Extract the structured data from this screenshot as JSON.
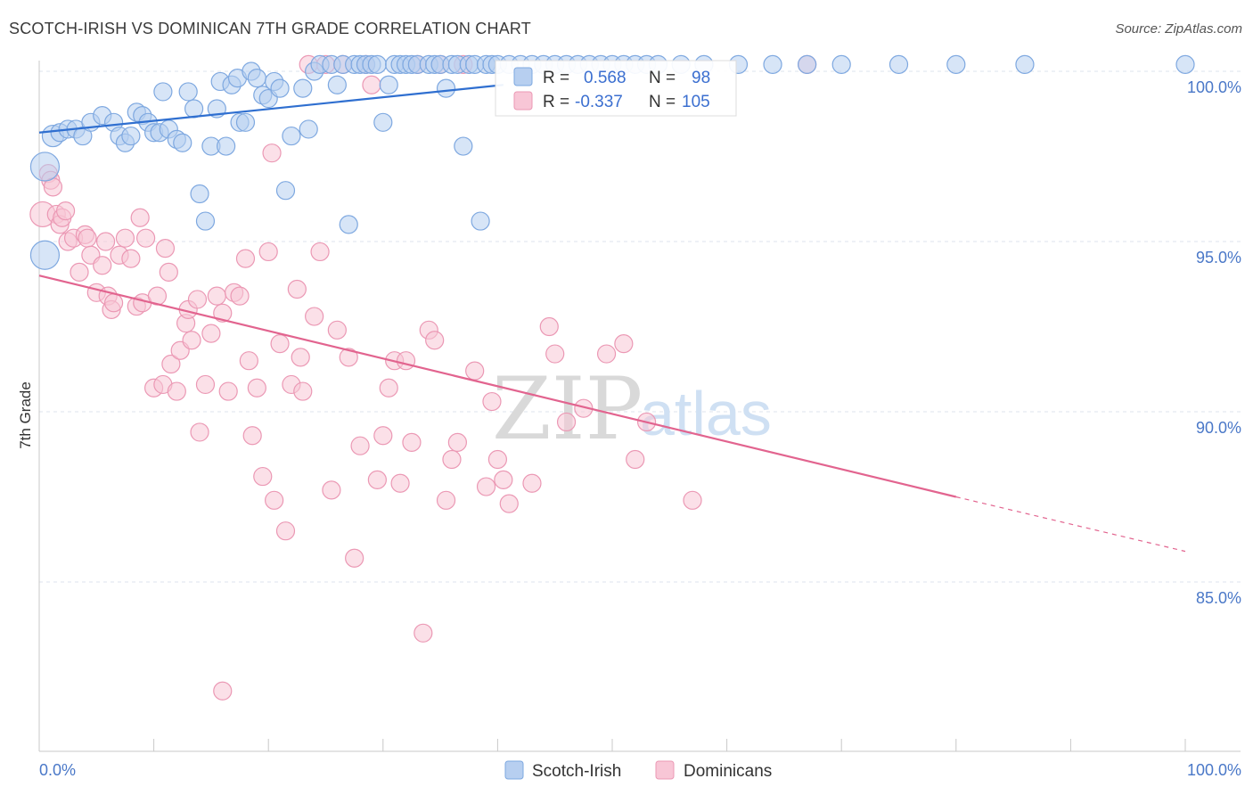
{
  "title": "SCOTCH-IRISH VS DOMINICAN 7TH GRADE CORRELATION CHART",
  "source": "Source: ZipAtlas.com",
  "watermark": {
    "zip": "ZIP",
    "atlas": "atlas"
  },
  "legend": {
    "rows": [
      {
        "r_label": "R =",
        "r_value": "0.568",
        "n_label": "N =",
        "n_value": "98"
      },
      {
        "r_label": "R =",
        "r_value": "-0.337",
        "n_label": "N =",
        "n_value": "105"
      }
    ]
  },
  "bottom_legend": [
    "Scotch-Irish",
    "Dominicans"
  ],
  "colors": {
    "blue_fill": "#b7cff0",
    "blue_stroke": "#7ea8e0",
    "blue_line": "#2f6fd0",
    "pink_fill": "#f8c6d6",
    "pink_stroke": "#eb98b4",
    "pink_line": "#e2648f",
    "grid": "#dde3ec",
    "axis_label": "#4a78c8"
  },
  "chart_data": {
    "type": "scatter",
    "title": "SCOTCH-IRISH VS DOMINICAN 7TH GRADE CORRELATION CHART",
    "xlabel": "",
    "ylabel": "7th Grade",
    "xlim": [
      0,
      100
    ],
    "ylim": [
      80.5,
      100.5
    ],
    "x_tick_labels": [
      "0.0%",
      "100.0%"
    ],
    "y_ticks": [
      100,
      95,
      90,
      85
    ],
    "y_tick_labels": [
      "100.0%",
      "95.0%",
      "90.0%",
      "85.0%"
    ],
    "grid": "horizontal dashed",
    "series": [
      {
        "name": "Scotch-Irish",
        "color": "#b7cff0",
        "trend": {
          "x": [
            0,
            40.5
          ],
          "y": [
            98.2,
            99.6
          ]
        },
        "points": [
          [
            0.5,
            97.2,
            16
          ],
          [
            0.5,
            94.6,
            16
          ],
          [
            1.2,
            98.1,
            12
          ],
          [
            1.8,
            98.2,
            10
          ],
          [
            2.5,
            98.3,
            10
          ],
          [
            3.2,
            98.3,
            10
          ],
          [
            3.8,
            98.1,
            10
          ],
          [
            4.5,
            98.5,
            10
          ],
          [
            5.5,
            98.7,
            10
          ],
          [
            6.5,
            98.5,
            10
          ],
          [
            7.0,
            98.1,
            10
          ],
          [
            7.5,
            97.9,
            10
          ],
          [
            8.0,
            98.1,
            10
          ],
          [
            8.5,
            98.8,
            10
          ],
          [
            9.0,
            98.7,
            10
          ],
          [
            9.5,
            98.5,
            10
          ],
          [
            10.0,
            98.2,
            10
          ],
          [
            10.5,
            98.2,
            10
          ],
          [
            10.8,
            99.4,
            10
          ],
          [
            11.3,
            98.3,
            10
          ],
          [
            12.0,
            98.0,
            10
          ],
          [
            12.5,
            97.9,
            10
          ],
          [
            13.0,
            99.4,
            10
          ],
          [
            13.5,
            98.9,
            10
          ],
          [
            14.0,
            96.4,
            10
          ],
          [
            14.5,
            95.6,
            10
          ],
          [
            15.0,
            97.8,
            10
          ],
          [
            15.5,
            98.9,
            10
          ],
          [
            15.8,
            99.7,
            10
          ],
          [
            16.3,
            97.8,
            10
          ],
          [
            16.8,
            99.6,
            10
          ],
          [
            17.3,
            99.8,
            10
          ],
          [
            17.5,
            98.5,
            10
          ],
          [
            18.0,
            98.5,
            10
          ],
          [
            18.5,
            100.0,
            10
          ],
          [
            19.0,
            99.8,
            10
          ],
          [
            19.5,
            99.3,
            10
          ],
          [
            20.0,
            99.2,
            10
          ],
          [
            20.5,
            99.7,
            10
          ],
          [
            21.0,
            99.5,
            10
          ],
          [
            21.5,
            96.5,
            10
          ],
          [
            22.0,
            98.1,
            10
          ],
          [
            23.0,
            99.5,
            10
          ],
          [
            23.5,
            98.3,
            10
          ],
          [
            24.0,
            100.0,
            10
          ],
          [
            24.5,
            100.2,
            10
          ],
          [
            25.5,
            100.2,
            10
          ],
          [
            26.0,
            99.6,
            10
          ],
          [
            26.5,
            100.2,
            10
          ],
          [
            27.0,
            95.5,
            10
          ],
          [
            27.5,
            100.2,
            10
          ],
          [
            28.0,
            100.2,
            10
          ],
          [
            28.5,
            100.2,
            10
          ],
          [
            29.0,
            100.2,
            10
          ],
          [
            29.5,
            100.2,
            10
          ],
          [
            30.0,
            98.5,
            10
          ],
          [
            30.5,
            99.6,
            10
          ],
          [
            31.0,
            100.2,
            10
          ],
          [
            31.5,
            100.2,
            10
          ],
          [
            32.0,
            100.2,
            10
          ],
          [
            32.5,
            100.2,
            10
          ],
          [
            33.0,
            100.2,
            10
          ],
          [
            34.0,
            100.2,
            10
          ],
          [
            34.5,
            100.2,
            10
          ],
          [
            35.0,
            100.2,
            10
          ],
          [
            35.5,
            99.5,
            10
          ],
          [
            36.0,
            100.2,
            10
          ],
          [
            36.5,
            100.2,
            10
          ],
          [
            37.0,
            97.8,
            10
          ],
          [
            37.5,
            100.2,
            10
          ],
          [
            38.0,
            100.2,
            10
          ],
          [
            38.5,
            95.6,
            10
          ],
          [
            39.0,
            100.2,
            10
          ],
          [
            39.5,
            100.2,
            10
          ],
          [
            40.0,
            100.2,
            10
          ],
          [
            41.0,
            100.2,
            10
          ],
          [
            42.0,
            100.2,
            10
          ],
          [
            43.0,
            100.2,
            10
          ],
          [
            44.0,
            100.2,
            10
          ],
          [
            45.0,
            100.2,
            10
          ],
          [
            46.0,
            100.2,
            10
          ],
          [
            47.0,
            100.2,
            10
          ],
          [
            48.0,
            100.2,
            10
          ],
          [
            49.0,
            100.2,
            10
          ],
          [
            50.0,
            100.2,
            10
          ],
          [
            51.0,
            100.2,
            10
          ],
          [
            52.0,
            100.2,
            10
          ],
          [
            53.0,
            100.2,
            10
          ],
          [
            54.0,
            100.2,
            10
          ],
          [
            56.0,
            100.2,
            10
          ],
          [
            58.0,
            100.2,
            10
          ],
          [
            61.0,
            100.2,
            10
          ],
          [
            64.0,
            100.2,
            10
          ],
          [
            67.0,
            100.2,
            10
          ],
          [
            70.0,
            100.2,
            10
          ],
          [
            75.0,
            100.2,
            10
          ],
          [
            80.0,
            100.2,
            10
          ],
          [
            86.0,
            100.2,
            10
          ],
          [
            100.0,
            100.2,
            10
          ]
        ]
      },
      {
        "name": "Dominicans",
        "color": "#f8c6d6",
        "trend": {
          "x": [
            0,
            80.0
          ],
          "y": [
            94.0,
            87.5
          ]
        },
        "trend_dashed": {
          "x": [
            80.0,
            100.0
          ],
          "y": [
            87.5,
            85.9
          ]
        },
        "points": [
          [
            0.3,
            95.8,
            14
          ],
          [
            0.8,
            97.0,
            10
          ],
          [
            1.0,
            96.8,
            10
          ],
          [
            1.2,
            96.6,
            10
          ],
          [
            1.5,
            95.8,
            10
          ],
          [
            1.8,
            95.5,
            10
          ],
          [
            2.0,
            95.7,
            10
          ],
          [
            2.3,
            95.9,
            10
          ],
          [
            2.5,
            95.0,
            10
          ],
          [
            3.0,
            95.1,
            10
          ],
          [
            3.5,
            94.1,
            10
          ],
          [
            4.0,
            95.2,
            10
          ],
          [
            4.2,
            95.1,
            10
          ],
          [
            4.5,
            94.6,
            10
          ],
          [
            5.0,
            93.5,
            10
          ],
          [
            5.5,
            94.3,
            10
          ],
          [
            5.8,
            95.0,
            10
          ],
          [
            6.0,
            93.4,
            10
          ],
          [
            6.3,
            93.0,
            10
          ],
          [
            6.5,
            93.2,
            10
          ],
          [
            7.0,
            94.6,
            10
          ],
          [
            7.5,
            95.1,
            10
          ],
          [
            8.0,
            94.5,
            10
          ],
          [
            8.5,
            93.1,
            10
          ],
          [
            8.8,
            95.7,
            10
          ],
          [
            9.0,
            93.2,
            10
          ],
          [
            9.3,
            95.1,
            10
          ],
          [
            10.0,
            90.7,
            10
          ],
          [
            10.3,
            93.4,
            10
          ],
          [
            10.8,
            90.8,
            10
          ],
          [
            11.0,
            94.8,
            10
          ],
          [
            11.3,
            94.1,
            10
          ],
          [
            11.5,
            91.4,
            10
          ],
          [
            12.0,
            90.6,
            10
          ],
          [
            12.3,
            91.8,
            10
          ],
          [
            12.8,
            92.6,
            10
          ],
          [
            13.0,
            93.0,
            10
          ],
          [
            13.3,
            92.1,
            10
          ],
          [
            13.8,
            93.3,
            10
          ],
          [
            14.0,
            89.4,
            10
          ],
          [
            14.5,
            90.8,
            10
          ],
          [
            15.0,
            92.3,
            10
          ],
          [
            15.5,
            93.4,
            10
          ],
          [
            16.0,
            92.9,
            10
          ],
          [
            16.5,
            90.6,
            10
          ],
          [
            17.0,
            93.5,
            10
          ],
          [
            17.5,
            93.4,
            10
          ],
          [
            18.0,
            94.5,
            10
          ],
          [
            18.3,
            91.5,
            10
          ],
          [
            18.6,
            89.3,
            10
          ],
          [
            19.0,
            90.7,
            10
          ],
          [
            19.5,
            88.1,
            10
          ],
          [
            20.0,
            94.7,
            10
          ],
          [
            20.3,
            97.6,
            10
          ],
          [
            20.5,
            87.4,
            10
          ],
          [
            21.0,
            92.0,
            10
          ],
          [
            21.5,
            86.5,
            10
          ],
          [
            22.0,
            90.8,
            10
          ],
          [
            22.5,
            93.6,
            10
          ],
          [
            22.8,
            91.6,
            10
          ],
          [
            23.0,
            90.6,
            10
          ],
          [
            23.5,
            100.2,
            10
          ],
          [
            24.0,
            92.8,
            10
          ],
          [
            24.5,
            94.7,
            10
          ],
          [
            25.0,
            100.2,
            10
          ],
          [
            25.5,
            87.7,
            10
          ],
          [
            26.0,
            92.4,
            10
          ],
          [
            26.5,
            100.2,
            10
          ],
          [
            27.0,
            91.6,
            10
          ],
          [
            27.5,
            85.7,
            10
          ],
          [
            28.0,
            89.0,
            10
          ],
          [
            28.5,
            100.2,
            10
          ],
          [
            29.0,
            99.6,
            10
          ],
          [
            29.5,
            88.0,
            10
          ],
          [
            30.0,
            89.3,
            10
          ],
          [
            30.5,
            90.7,
            10
          ],
          [
            31.0,
            91.5,
            10
          ],
          [
            31.5,
            87.9,
            10
          ],
          [
            32.0,
            91.5,
            10
          ],
          [
            32.5,
            89.1,
            10
          ],
          [
            33.0,
            100.2,
            10
          ],
          [
            33.5,
            83.5,
            10
          ],
          [
            34.0,
            92.4,
            10
          ],
          [
            34.5,
            92.1,
            10
          ],
          [
            35.0,
            100.2,
            10
          ],
          [
            35.5,
            87.4,
            10
          ],
          [
            36.0,
            88.6,
            10
          ],
          [
            36.5,
            89.1,
            10
          ],
          [
            37.0,
            100.2,
            10
          ],
          [
            38.0,
            91.2,
            10
          ],
          [
            39.0,
            87.8,
            10
          ],
          [
            39.5,
            90.3,
            10
          ],
          [
            40.0,
            88.6,
            10
          ],
          [
            40.5,
            88.0,
            10
          ],
          [
            41.0,
            87.3,
            10
          ],
          [
            43.0,
            87.9,
            10
          ],
          [
            44.5,
            92.5,
            10
          ],
          [
            45.0,
            91.7,
            10
          ],
          [
            46.0,
            89.7,
            10
          ],
          [
            47.5,
            90.1,
            10
          ],
          [
            49.5,
            91.7,
            10
          ],
          [
            51.0,
            92.0,
            10
          ],
          [
            52.0,
            88.6,
            10
          ],
          [
            53.0,
            89.7,
            10
          ],
          [
            57.0,
            87.4,
            10
          ],
          [
            16.0,
            81.8,
            10
          ],
          [
            67.0,
            100.2,
            10
          ]
        ]
      }
    ]
  }
}
